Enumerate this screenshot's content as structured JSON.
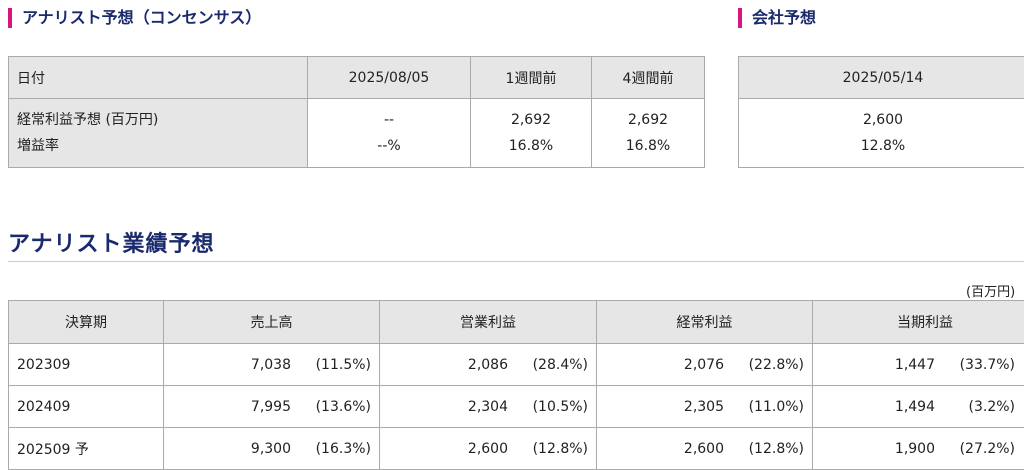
{
  "consensus": {
    "title": "アナリスト予想（コンセンサス）",
    "headers": [
      "日付",
      "2025/08/05",
      "1週間前",
      "4週間前"
    ],
    "row_labels": [
      "経常利益予想 (百万円)",
      "増益率"
    ],
    "col_values": [
      [
        "--",
        "--%"
      ],
      [
        "2,692",
        "16.8%"
      ],
      [
        "2,692",
        "16.8%"
      ]
    ]
  },
  "company": {
    "title": "会社予想",
    "header": "2025/05/14",
    "values": [
      "2,600",
      "12.8%"
    ]
  },
  "analyst": {
    "title": "アナリスト業績予想",
    "unit": "(百万円)",
    "headers": [
      "決算期",
      "売上高",
      "営業利益",
      "経常利益",
      "当期利益"
    ],
    "rows": [
      {
        "period": "202309",
        "cells": [
          [
            "7,038",
            "(11.5%)"
          ],
          [
            "2,086",
            "(28.4%)"
          ],
          [
            "2,076",
            "(22.8%)"
          ],
          [
            "1,447",
            "(33.7%)"
          ]
        ]
      },
      {
        "period": "202409",
        "cells": [
          [
            "7,995",
            "(13.6%)"
          ],
          [
            "2,304",
            "(10.5%)"
          ],
          [
            "2,305",
            "(11.0%)"
          ],
          [
            "1,494",
            "(3.2%)"
          ]
        ]
      },
      {
        "period": "202509 予",
        "cells": [
          [
            "9,300",
            "(16.3%)"
          ],
          [
            "2,600",
            "(12.8%)"
          ],
          [
            "2,600",
            "(12.8%)"
          ],
          [
            "1,900",
            "(27.2%)"
          ]
        ]
      }
    ]
  }
}
